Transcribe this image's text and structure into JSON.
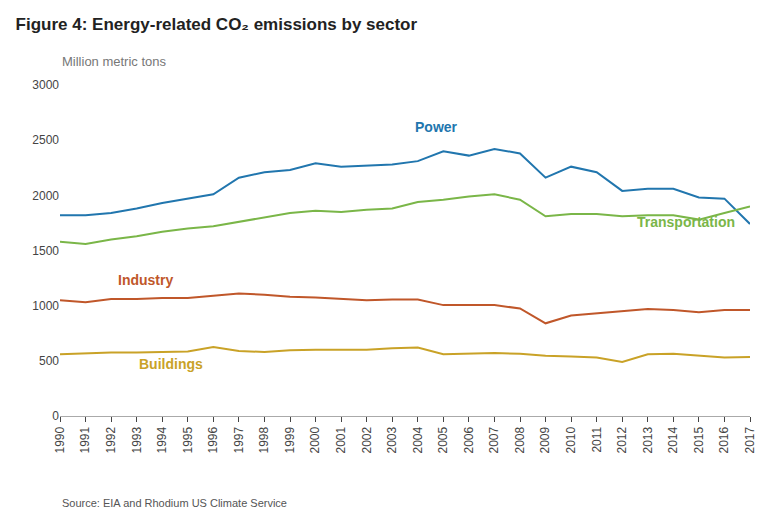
{
  "chart_data": {
    "type": "line",
    "title": "Figure 4: Energy-related CO₂ emissions by sector",
    "subtitle": "Million metric tons",
    "source": "Source: EIA and Rhodium US Climate Service",
    "x": [
      1990,
      1991,
      1992,
      1993,
      1994,
      1995,
      1996,
      1997,
      1998,
      1999,
      2000,
      2001,
      2002,
      2003,
      2004,
      2005,
      2006,
      2007,
      2008,
      2009,
      2010,
      2011,
      2012,
      2013,
      2014,
      2015,
      2016,
      2017
    ],
    "series": [
      {
        "name": "Power",
        "color": "#2176ae",
        "values": [
          1820,
          1820,
          1840,
          1880,
          1930,
          1970,
          2010,
          2160,
          2210,
          2230,
          2290,
          2260,
          2270,
          2280,
          2310,
          2400,
          2360,
          2420,
          2380,
          2160,
          2260,
          2210,
          2040,
          2060,
          2060,
          1980,
          1970,
          1740
        ]
      },
      {
        "name": "Transportation",
        "color": "#7ab648",
        "values": [
          1580,
          1560,
          1600,
          1630,
          1670,
          1700,
          1720,
          1760,
          1800,
          1840,
          1860,
          1850,
          1870,
          1880,
          1940,
          1960,
          1990,
          2010,
          1960,
          1810,
          1830,
          1830,
          1810,
          1820,
          1820,
          1780,
          1840,
          1900
        ]
      },
      {
        "name": "Industry",
        "color": "#c0572a",
        "values": [
          1050,
          1030,
          1060,
          1060,
          1070,
          1070,
          1090,
          1110,
          1100,
          1080,
          1075,
          1060,
          1050,
          1055,
          1055,
          1005,
          1005,
          1005,
          975,
          840,
          910,
          930,
          950,
          970,
          960,
          940,
          960,
          960
        ]
      },
      {
        "name": "Buildings",
        "color": "#c9a227",
        "values": [
          560,
          570,
          575,
          575,
          580,
          585,
          625,
          590,
          580,
          595,
          600,
          600,
          600,
          615,
          620,
          560,
          565,
          570,
          565,
          545,
          540,
          530,
          490,
          560,
          565,
          545,
          530,
          535
        ]
      }
    ],
    "annotations": [
      {
        "text": "Power",
        "x": 2003.8,
        "y": 2530
      },
      {
        "text": "Transportation",
        "x": 2012.5,
        "y": 1665
      },
      {
        "text": "Industry",
        "x": 1992.2,
        "y": 1145
      },
      {
        "text": "Buildings",
        "x": 1993.0,
        "y": 380
      }
    ],
    "xlim": [
      1990,
      2017
    ],
    "xticks": [
      1990,
      1991,
      1992,
      1993,
      1994,
      1995,
      1996,
      1997,
      1998,
      1999,
      2000,
      2001,
      2002,
      2003,
      2004,
      2005,
      2006,
      2007,
      2008,
      2009,
      2010,
      2011,
      2012,
      2013,
      2014,
      2015,
      2016,
      2017
    ],
    "ylim": [
      0,
      3000
    ],
    "yticks": [
      0,
      500,
      1000,
      1500,
      2000,
      2500,
      3000
    ],
    "grid": false
  }
}
